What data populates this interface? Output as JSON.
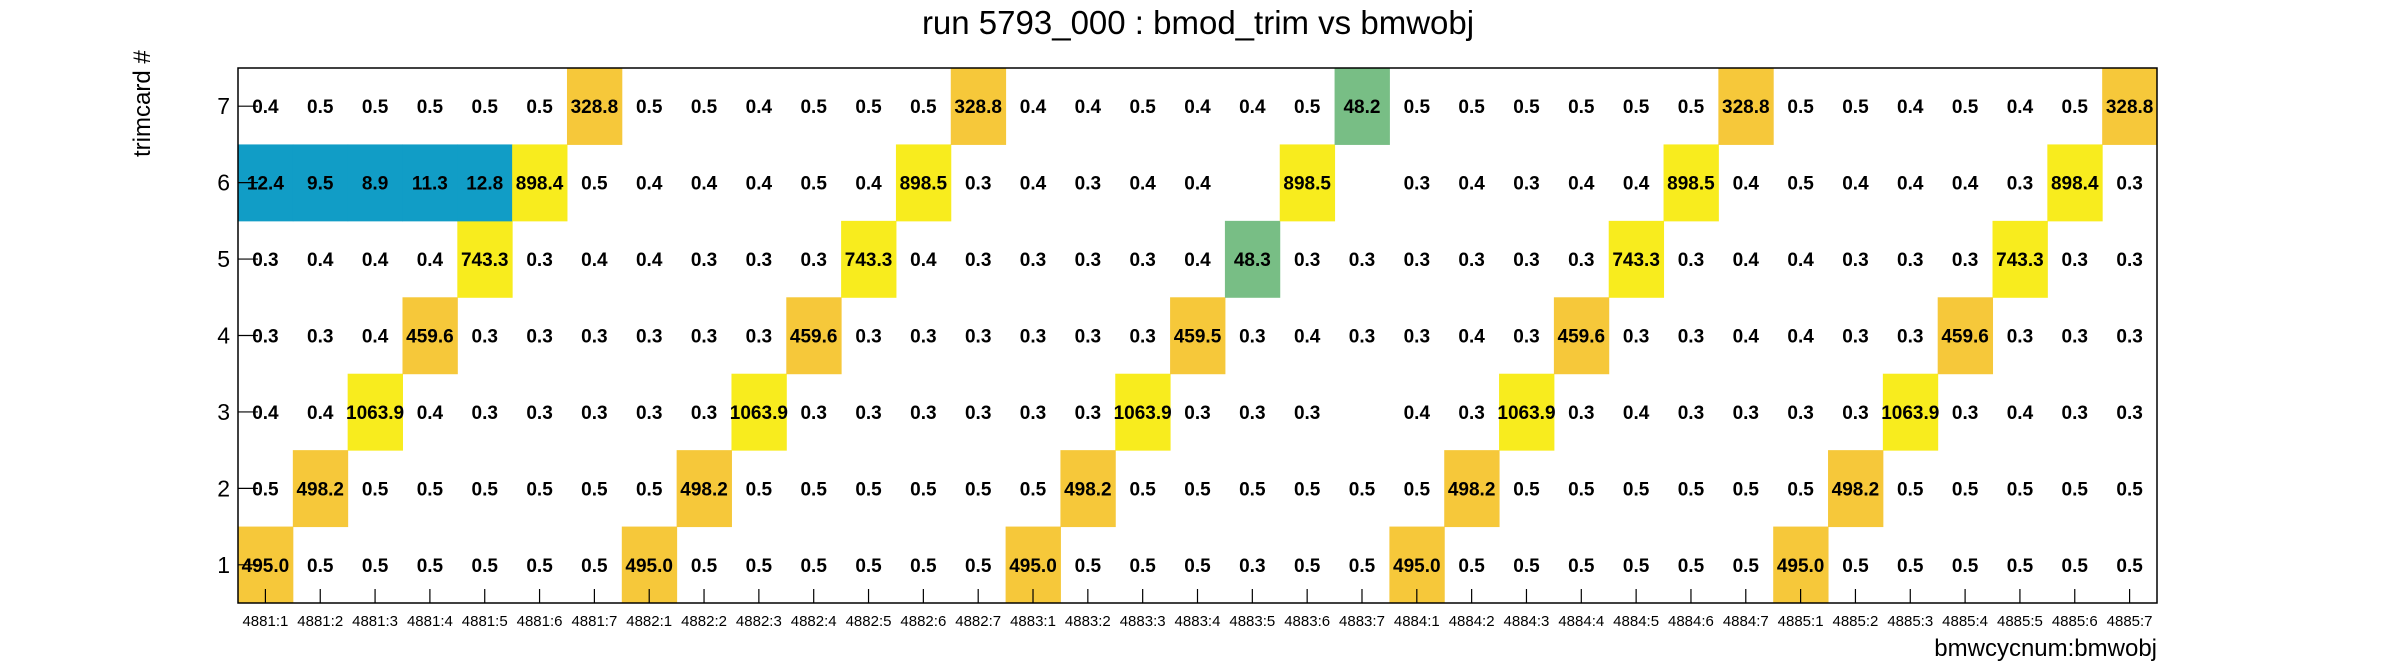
{
  "chart_data": {
    "type": "heatmap",
    "title": "run 5793_000 : bmod_trim vs bmwobj",
    "xlabel": "bmwcycnum:bmwobj",
    "ylabel": "trimcard #",
    "x_categories": [
      "4881:1",
      "4881:2",
      "4881:3",
      "4881:4",
      "4881:5",
      "4881:6",
      "4881:7",
      "4882:1",
      "4882:2",
      "4882:3",
      "4882:4",
      "4882:5",
      "4882:6",
      "4882:7",
      "4883:1",
      "4883:2",
      "4883:3",
      "4883:4",
      "4883:5",
      "4883:6",
      "4883:7",
      "4884:1",
      "4884:2",
      "4884:3",
      "4884:4",
      "4884:5",
      "4884:6",
      "4884:7",
      "4885:1",
      "4885:2",
      "4885:3",
      "4885:4",
      "4885:5",
      "4885:6",
      "4885:7"
    ],
    "y_categories": [
      "1",
      "2",
      "3",
      "4",
      "5",
      "6",
      "7"
    ],
    "values": [
      [
        "495.0",
        "0.5",
        "0.5",
        "0.5",
        "0.5",
        "0.5",
        "0.5",
        "495.0",
        "0.5",
        "0.5",
        "0.5",
        "0.5",
        "0.5",
        "0.5",
        "495.0",
        "0.5",
        "0.5",
        "0.5",
        "0.3",
        "0.5",
        "0.5",
        "495.0",
        "0.5",
        "0.5",
        "0.5",
        "0.5",
        "0.5",
        "0.5",
        "495.0",
        "0.5",
        "0.5",
        "0.5",
        "0.5",
        "0.5",
        "0.5"
      ],
      [
        "0.5",
        "498.2",
        "0.5",
        "0.5",
        "0.5",
        "0.5",
        "0.5",
        "0.5",
        "498.2",
        "0.5",
        "0.5",
        "0.5",
        "0.5",
        "0.5",
        "0.5",
        "498.2",
        "0.5",
        "0.5",
        "0.5",
        "0.5",
        "0.5",
        "0.5",
        "498.2",
        "0.5",
        "0.5",
        "0.5",
        "0.5",
        "0.5",
        "0.5",
        "498.2",
        "0.5",
        "0.5",
        "0.5",
        "0.5",
        "0.5"
      ],
      [
        "0.4",
        "0.4",
        "1063.9",
        "0.4",
        "0.3",
        "0.3",
        "0.3",
        "0.3",
        "0.3",
        "1063.9",
        "0.3",
        "0.3",
        "0.3",
        "0.3",
        "0.3",
        "0.3",
        "1063.9",
        "0.3",
        "0.3",
        "0.3",
        null,
        "0.4",
        "0.3",
        "1063.9",
        "0.3",
        "0.4",
        "0.3",
        "0.3",
        "0.3",
        "0.3",
        "1063.9",
        "0.3",
        "0.4",
        "0.3",
        "0.3"
      ],
      [
        "0.3",
        "0.3",
        "0.4",
        "459.6",
        "0.3",
        "0.3",
        "0.3",
        "0.3",
        "0.3",
        "0.3",
        "459.6",
        "0.3",
        "0.3",
        "0.3",
        "0.3",
        "0.3",
        "0.3",
        "459.5",
        "0.3",
        "0.4",
        "0.3",
        "0.3",
        "0.4",
        "0.3",
        "459.6",
        "0.3",
        "0.3",
        "0.4",
        "0.4",
        "0.3",
        "0.3",
        "459.6",
        "0.3",
        "0.3",
        "0.3"
      ],
      [
        "0.3",
        "0.4",
        "0.4",
        "0.4",
        "743.3",
        "0.3",
        "0.4",
        "0.4",
        "0.3",
        "0.3",
        "0.3",
        "743.3",
        "0.4",
        "0.3",
        "0.3",
        "0.3",
        "0.3",
        "0.4",
        "48.3",
        "0.3",
        "0.3",
        "0.3",
        "0.3",
        "0.3",
        "0.3",
        "743.3",
        "0.3",
        "0.4",
        "0.4",
        "0.3",
        "0.3",
        "0.3",
        "743.3",
        "0.3",
        "0.3"
      ],
      [
        "12.4",
        "9.5",
        "8.9",
        "11.3",
        "12.8",
        "898.4",
        "0.5",
        "0.4",
        "0.4",
        "0.4",
        "0.5",
        "0.4",
        "898.5",
        "0.3",
        "0.4",
        "0.3",
        "0.4",
        "0.4",
        null,
        "898.5",
        null,
        "0.3",
        "0.4",
        "0.3",
        "0.4",
        "0.4",
        "898.5",
        "0.4",
        "0.5",
        "0.4",
        "0.4",
        "0.4",
        "0.3",
        "898.4",
        "0.3"
      ],
      [
        "0.4",
        "0.5",
        "0.5",
        "0.5",
        "0.5",
        "0.5",
        "328.8",
        "0.5",
        "0.5",
        "0.4",
        "0.5",
        "0.5",
        "0.5",
        "328.8",
        "0.4",
        "0.4",
        "0.5",
        "0.4",
        "0.4",
        "0.5",
        "48.2",
        "0.5",
        "0.5",
        "0.5",
        "0.5",
        "0.5",
        "0.5",
        "328.8",
        "0.5",
        "0.5",
        "0.4",
        "0.5",
        "0.4",
        "0.5",
        "328.8"
      ]
    ],
    "colors": {
      "low_blue": "#119dc6",
      "green": "#78be85",
      "gold": "#f6c83a",
      "yellow": "#f8ec1e",
      "grid_frame": "#000000"
    },
    "grid": false
  }
}
